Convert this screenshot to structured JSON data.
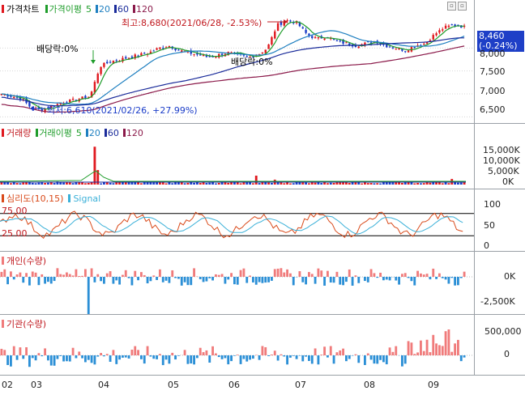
{
  "colors": {
    "up": "#e0191f",
    "down": "#1a3cc8",
    "ma5": "#1f9d2b",
    "ma20": "#1e7fc0",
    "ma60": "#1a2b9a",
    "ma120": "#8b1a4a",
    "rsi_line": "#d94a1a",
    "signal_line": "#3ab0d8",
    "individual": "#2b8fd6",
    "institution_pos": "#f07b7b",
    "price_box": "#1e3fc7"
  },
  "price_panel": {
    "title": "가격차트",
    "legend": [
      {
        "label": "가격이평",
        "color": "#1f9d2b",
        "icon": "bar-swatch"
      },
      {
        "label": "5",
        "color": "#1f9d2b",
        "icon": "bar-swatch"
      },
      {
        "label": "20",
        "color": "#1e7fc0",
        "icon": "bar-swatch"
      },
      {
        "label": "60",
        "color": "#1a2b9a",
        "icon": "bar-swatch"
      },
      {
        "label": "120",
        "color": "#8b1a4a",
        "icon": "bar-swatch"
      }
    ],
    "high_annotation": "최고:8,680(2021/06/28, -2.53%)",
    "low_annotation": "최저:6,610(2021/02/26, +27.99%)",
    "dividend_label_1": "배당락:0%",
    "dividend_label_2": "배당락:0%",
    "current_price": "8,460",
    "current_change": "(-0.24%)",
    "y_ticks": [
      "8,000",
      "7,500",
      "7,000",
      "6,500"
    ]
  },
  "volume_panel": {
    "title": "거래량",
    "legend": [
      {
        "label": "거래이평",
        "color": "#1f9d2b"
      },
      {
        "label": "5",
        "color": "#1f9d2b"
      },
      {
        "label": "20",
        "color": "#1e7fc0"
      },
      {
        "label": "60",
        "color": "#1a2b9a"
      },
      {
        "label": "120",
        "color": "#8b1a4a"
      }
    ],
    "y_ticks": [
      "15,000K",
      "10,000K",
      "5,000K",
      "0K"
    ]
  },
  "psych_panel": {
    "title": "심리도(10,15)",
    "signal_label": "Signal",
    "upper_level": "75.00",
    "lower_level": "25.00",
    "y_ticks": [
      "100",
      "50",
      "0"
    ]
  },
  "individual_panel": {
    "title": "개인(수량)",
    "y_ticks": [
      "0K",
      "-2,500K"
    ]
  },
  "institution_panel": {
    "title": "기관(수량)",
    "y_ticks": [
      "500,000",
      "0"
    ]
  },
  "x_axis": {
    "ticks": [
      "02",
      "03",
      "04",
      "05",
      "06",
      "07",
      "08",
      "09"
    ]
  },
  "chart_data": {
    "type": "candlestick",
    "series_price_close": [
      7000,
      6950,
      6900,
      6700,
      6650,
      6720,
      6800,
      6850,
      6900,
      6950,
      7600,
      7700,
      7750,
      7800,
      7850,
      7900,
      8000,
      8050,
      7950,
      7900,
      7850,
      7800,
      7850,
      7900,
      7850,
      7800,
      7850,
      8000,
      8500,
      8600,
      8550,
      8300,
      8200,
      8250,
      8150,
      8100,
      8050,
      8100,
      8150,
      8050,
      8000,
      7950,
      8050,
      8100,
      8300,
      8450,
      8500,
      8460
    ],
    "price_range": [
      6400,
      8800
    ],
    "psych_levels": [
      75,
      25
    ],
    "psych_range": [
      0,
      100
    ]
  }
}
